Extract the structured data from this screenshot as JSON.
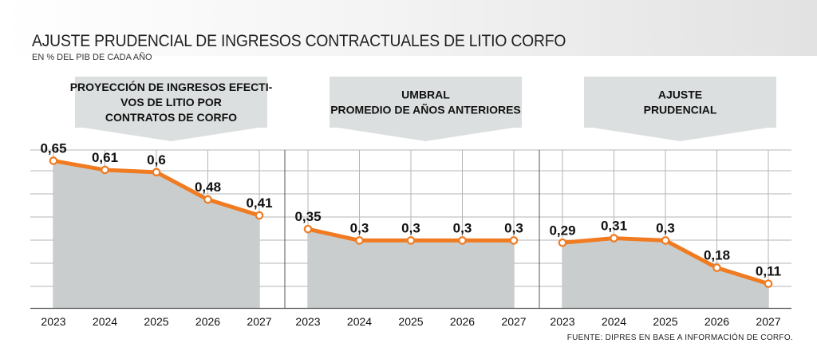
{
  "header": {
    "title": "AJUSTE PRUDENCIAL DE INGRESOS CONTRACTUALES DE LITIO CORFO",
    "subtitle": "EN % DEL PIB DE CADA AÑO",
    "source": "FUENTE: DIPRES EN BASE A INFORMACIÓN DE CORFO."
  },
  "chart_data": [
    {
      "type": "area",
      "title_lines": [
        "PROYECCIÓN DE INGRESOS EFECTI-",
        "VOS DE LITIO POR",
        "CONTRATOS DE CORFO"
      ],
      "categories": [
        "2023",
        "2024",
        "2025",
        "2026",
        "2027"
      ],
      "values": [
        0.65,
        0.61,
        0.6,
        0.48,
        0.41
      ],
      "labels": [
        "0,65",
        "0,61",
        "0,6",
        "0,48",
        "0,41"
      ],
      "ylim": [
        0,
        0.7
      ],
      "grid": true
    },
    {
      "type": "area",
      "title_lines": [
        "UMBRAL",
        "PROMEDIO DE AÑOS ANTERIORES"
      ],
      "categories": [
        "2023",
        "2024",
        "2025",
        "2026",
        "2027"
      ],
      "values": [
        0.35,
        0.3,
        0.3,
        0.3,
        0.3
      ],
      "labels": [
        "0,35",
        "0,3",
        "0,3",
        "0,3",
        "0,3"
      ],
      "ylim": [
        0,
        0.7
      ],
      "grid": true
    },
    {
      "type": "area",
      "title_lines": [
        "AJUSTE",
        "PRUDENCIAL"
      ],
      "categories": [
        "2023",
        "2024",
        "2025",
        "2026",
        "2027"
      ],
      "values": [
        0.29,
        0.31,
        0.3,
        0.18,
        0.11
      ],
      "labels": [
        "0,29",
        "0,31",
        "0,3",
        "0,18",
        "0,11"
      ],
      "ylim": [
        0,
        0.7
      ],
      "grid": true
    }
  ],
  "colors": {
    "line": "#f07b21",
    "area": "#c9cdcd",
    "banner": "#dcdfdf",
    "grid": "#b5b5b5",
    "axis": "#555555",
    "text": "#111111"
  }
}
